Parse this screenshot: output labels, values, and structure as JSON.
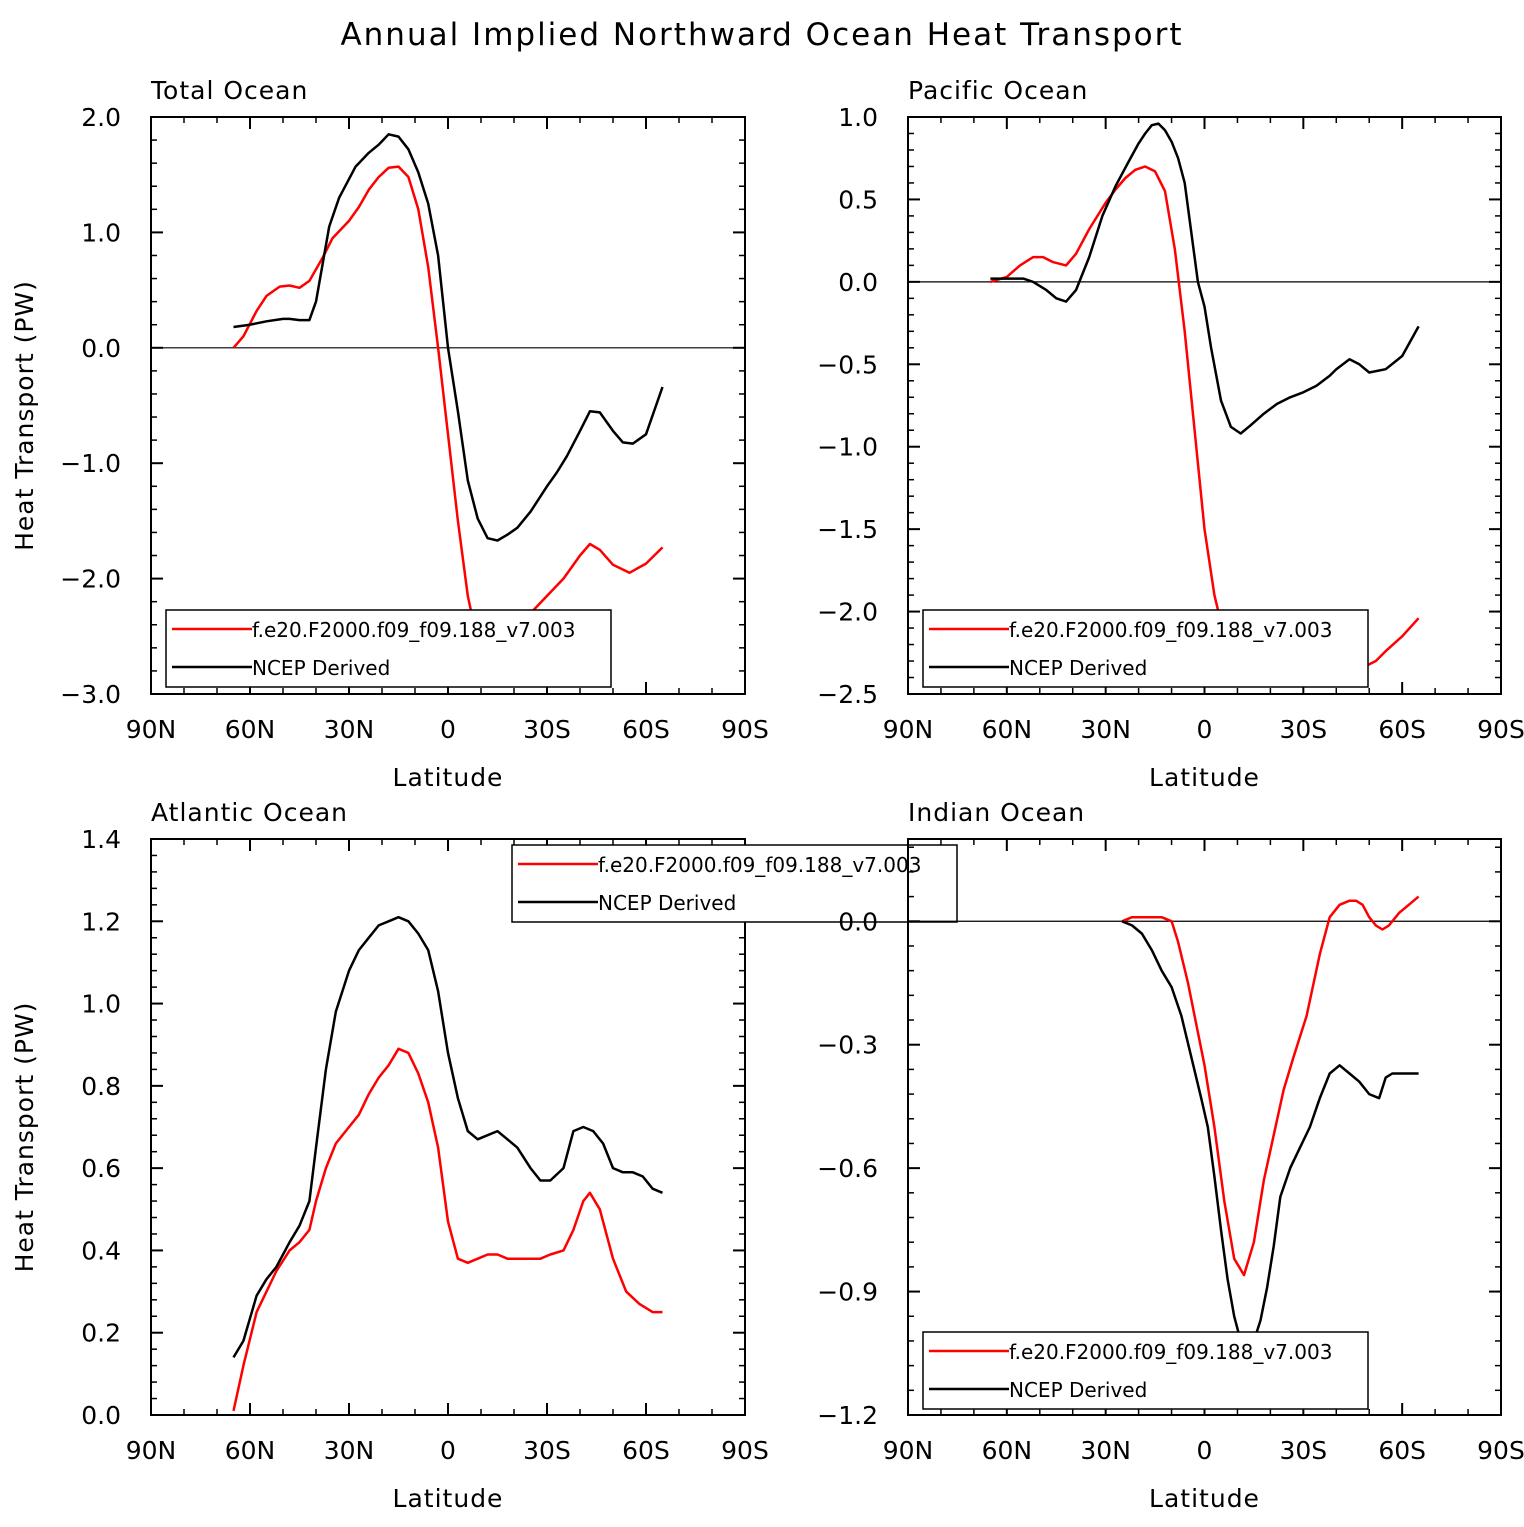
{
  "title": "Annual Implied Northward Ocean Heat Transport",
  "chart_data": [
    {
      "type": "line",
      "panel_title": "Total Ocean",
      "xlabel": "Latitude",
      "ylabel": "Heat Transport (PW)",
      "xlim": [
        90,
        -90
      ],
      "ylim": [
        -3.0,
        2.0
      ],
      "xticks": [
        90,
        60,
        30,
        0,
        -30,
        -60,
        -90
      ],
      "xtick_labels": [
        "90N",
        "60N",
        "30N",
        "0",
        "30S",
        "60S",
        "90S"
      ],
      "yticks": [
        -3.0,
        -2.0,
        -1.0,
        0.0,
        1.0,
        2.0
      ],
      "ytick_labels": [
        "−3.0",
        "−2.0",
        "−1.0",
        "0.0",
        "1.0",
        "2.0"
      ],
      "zero_line": true,
      "legend_position": "bottom-left",
      "show_ylabel": true,
      "series": [
        {
          "name": "f.e20.F2000.f09_f09.188_v7.003",
          "color": "#ff0000",
          "x": [
            65,
            62,
            58,
            55,
            51,
            48,
            45,
            42,
            38,
            35,
            30,
            27,
            24,
            21,
            18,
            15,
            12,
            9,
            6,
            3,
            0,
            -3,
            -6,
            -9,
            -12,
            -15,
            -18,
            -21,
            -25,
            -30,
            -35,
            -40,
            -43,
            -46,
            -50,
            -55,
            -60,
            -65
          ],
          "y": [
            0.0,
            0.1,
            0.32,
            0.45,
            0.53,
            0.54,
            0.52,
            0.58,
            0.78,
            0.95,
            1.1,
            1.22,
            1.37,
            1.48,
            1.56,
            1.57,
            1.48,
            1.2,
            0.7,
            0.0,
            -0.75,
            -1.5,
            -2.15,
            -2.55,
            -2.7,
            -2.72,
            -2.6,
            -2.45,
            -2.3,
            -2.15,
            -2.0,
            -1.8,
            -1.7,
            -1.75,
            -1.88,
            -1.95,
            -1.87,
            -1.73
          ]
        },
        {
          "name": "NCEP Derived",
          "color": "#000000",
          "x": [
            65,
            60,
            55,
            50,
            48,
            45,
            42,
            40,
            36,
            33,
            28,
            24,
            21,
            18,
            15,
            12,
            9,
            6,
            3,
            0,
            -3,
            -6,
            -9,
            -12,
            -15,
            -18,
            -21,
            -25,
            -30,
            -33,
            -36,
            -40,
            -43,
            -46,
            -50,
            -53,
            -56,
            -60,
            -65
          ],
          "y": [
            0.18,
            0.2,
            0.23,
            0.25,
            0.25,
            0.24,
            0.24,
            0.4,
            1.05,
            1.3,
            1.57,
            1.69,
            1.76,
            1.85,
            1.83,
            1.72,
            1.52,
            1.25,
            0.8,
            0.0,
            -0.55,
            -1.15,
            -1.48,
            -1.65,
            -1.67,
            -1.62,
            -1.56,
            -1.42,
            -1.2,
            -1.08,
            -0.94,
            -0.72,
            -0.55,
            -0.56,
            -0.72,
            -0.82,
            -0.83,
            -0.75,
            -0.34
          ]
        }
      ]
    },
    {
      "type": "line",
      "panel_title": "Pacific Ocean",
      "xlabel": "Latitude",
      "ylabel": "",
      "xlim": [
        90,
        -90
      ],
      "ylim": [
        -2.5,
        1.0
      ],
      "xticks": [
        90,
        60,
        30,
        0,
        -30,
        -60,
        -90
      ],
      "xtick_labels": [
        "90N",
        "60N",
        "30N",
        "0",
        "30S",
        "60S",
        "90S"
      ],
      "yticks": [
        -2.5,
        -2.0,
        -1.5,
        -1.0,
        -0.5,
        0.0,
        0.5,
        1.0
      ],
      "ytick_labels": [
        "−2.5",
        "−2.0",
        "−1.5",
        "−1.0",
        "−0.5",
        "0.0",
        "0.5",
        "1.0"
      ],
      "zero_line": true,
      "legend_position": "bottom-left",
      "show_ylabel": false,
      "series": [
        {
          "name": "f.e20.F2000.f09_f09.188_v7.003",
          "color": "#ff0000",
          "x": [
            65,
            60,
            56,
            52,
            49,
            46,
            42,
            39,
            35,
            30,
            27,
            24,
            21,
            18,
            15,
            12,
            9,
            6,
            3,
            0,
            -3,
            -6,
            -9,
            -12,
            -15,
            -18,
            -21,
            -24,
            -27,
            -30,
            -34,
            -38,
            -42,
            -46,
            -49,
            -52,
            -55,
            -60,
            -65
          ],
          "y": [
            0.0,
            0.03,
            0.1,
            0.15,
            0.15,
            0.12,
            0.1,
            0.17,
            0.32,
            0.48,
            0.56,
            0.63,
            0.68,
            0.7,
            0.67,
            0.55,
            0.2,
            -0.3,
            -0.9,
            -1.5,
            -1.9,
            -2.15,
            -2.25,
            -2.27,
            -2.24,
            -2.19,
            -2.15,
            -2.13,
            -2.12,
            -2.12,
            -2.14,
            -2.2,
            -2.26,
            -2.31,
            -2.33,
            -2.3,
            -2.24,
            -2.15,
            -2.04
          ]
        },
        {
          "name": "NCEP Derived",
          "color": "#000000",
          "x": [
            65,
            60,
            55,
            52,
            48,
            45,
            42,
            39,
            35,
            31,
            27,
            23,
            20,
            18,
            16,
            14,
            12,
            10,
            8,
            6,
            4,
            2,
            0,
            -2,
            -5,
            -8,
            -11,
            -14,
            -18,
            -22,
            -26,
            -30,
            -34,
            -38,
            -40,
            -42,
            -44,
            -47,
            -50,
            -55,
            -60,
            -65
          ],
          "y": [
            0.02,
            0.02,
            0.02,
            0.0,
            -0.05,
            -0.1,
            -0.12,
            -0.05,
            0.15,
            0.4,
            0.58,
            0.73,
            0.84,
            0.9,
            0.95,
            0.96,
            0.92,
            0.85,
            0.75,
            0.6,
            0.3,
            0.0,
            -0.15,
            -0.4,
            -0.72,
            -0.88,
            -0.92,
            -0.87,
            -0.8,
            -0.74,
            -0.7,
            -0.67,
            -0.63,
            -0.57,
            -0.53,
            -0.5,
            -0.47,
            -0.5,
            -0.55,
            -0.53,
            -0.45,
            -0.27
          ]
        }
      ]
    },
    {
      "type": "line",
      "panel_title": "Atlantic Ocean",
      "xlabel": "Latitude",
      "ylabel": "Heat Transport (PW)",
      "xlim": [
        90,
        -90
      ],
      "ylim": [
        0.0,
        1.4
      ],
      "xticks": [
        90,
        60,
        30,
        0,
        -30,
        -60,
        -90
      ],
      "xtick_labels": [
        "90N",
        "60N",
        "30N",
        "0",
        "30S",
        "60S",
        "90S"
      ],
      "yticks": [
        0.0,
        0.2,
        0.4,
        0.6,
        0.8,
        1.0,
        1.2,
        1.4
      ],
      "ytick_labels": [
        "0.0",
        "0.2",
        "0.4",
        "0.6",
        "0.8",
        "1.0",
        "1.2",
        "1.4"
      ],
      "zero_line": false,
      "legend_position": "top-center",
      "show_ylabel": true,
      "series": [
        {
          "name": "f.e20.F2000.f09_f09.188_v7.003",
          "color": "#ff0000",
          "x": [
            65,
            62,
            58,
            55,
            52,
            48,
            45,
            42,
            40,
            37,
            34,
            30,
            27,
            24,
            21,
            18,
            15,
            12,
            9,
            6,
            3,
            0,
            -3,
            -6,
            -9,
            -12,
            -15,
            -18,
            -21,
            -25,
            -28,
            -31,
            -35,
            -38,
            -41,
            -43,
            -46,
            -50,
            -54,
            -58,
            -62,
            -65
          ],
          "y": [
            0.01,
            0.12,
            0.25,
            0.3,
            0.35,
            0.4,
            0.42,
            0.45,
            0.52,
            0.6,
            0.66,
            0.7,
            0.73,
            0.78,
            0.82,
            0.85,
            0.89,
            0.88,
            0.83,
            0.76,
            0.65,
            0.47,
            0.38,
            0.37,
            0.38,
            0.39,
            0.39,
            0.38,
            0.38,
            0.38,
            0.38,
            0.39,
            0.4,
            0.45,
            0.52,
            0.54,
            0.5,
            0.38,
            0.3,
            0.27,
            0.25,
            0.25
          ]
        },
        {
          "name": "NCEP Derived",
          "color": "#000000",
          "x": [
            65,
            62,
            58,
            55,
            52,
            48,
            45,
            42,
            40,
            37,
            34,
            30,
            27,
            24,
            21,
            18,
            15,
            12,
            9,
            6,
            3,
            0,
            -3,
            -6,
            -9,
            -12,
            -15,
            -18,
            -21,
            -25,
            -28,
            -31,
            -35,
            -38,
            -41,
            -44,
            -47,
            -50,
            -53,
            -56,
            -59,
            -62,
            -65
          ],
          "y": [
            0.14,
            0.18,
            0.29,
            0.33,
            0.36,
            0.42,
            0.46,
            0.52,
            0.65,
            0.84,
            0.98,
            1.08,
            1.13,
            1.16,
            1.19,
            1.2,
            1.21,
            1.2,
            1.17,
            1.13,
            1.03,
            0.88,
            0.77,
            0.69,
            0.67,
            0.68,
            0.69,
            0.67,
            0.65,
            0.6,
            0.57,
            0.57,
            0.6,
            0.69,
            0.7,
            0.69,
            0.66,
            0.6,
            0.59,
            0.59,
            0.58,
            0.55,
            0.54
          ]
        }
      ]
    },
    {
      "type": "line",
      "panel_title": "Indian Ocean",
      "xlabel": "Latitude",
      "ylabel": "",
      "xlim": [
        90,
        -90
      ],
      "ylim": [
        -1.2,
        0.2
      ],
      "xticks": [
        90,
        60,
        30,
        0,
        -30,
        -60,
        -90
      ],
      "xtick_labels": [
        "90N",
        "60N",
        "30N",
        "0",
        "30S",
        "60S",
        "90S"
      ],
      "yticks": [
        -1.2,
        -0.9,
        -0.6,
        -0.3,
        0.0
      ],
      "ytick_labels": [
        "−1.2",
        "−0.9",
        "−0.6",
        "−0.3",
        "0.0"
      ],
      "zero_line": true,
      "legend_position": "bottom-left",
      "show_ylabel": false,
      "series": [
        {
          "name": "f.e20.F2000.f09_f09.188_v7.003",
          "color": "#ff0000",
          "x": [
            25,
            22,
            19,
            16,
            13,
            10,
            8,
            5,
            2,
            0,
            -3,
            -6,
            -9,
            -12,
            -15,
            -18,
            -21,
            -24,
            -27,
            -31,
            -35,
            -38,
            -41,
            -44,
            -46,
            -48,
            -50,
            -52,
            -54,
            -56,
            -59,
            -62,
            -65
          ],
          "y": [
            0.0,
            0.01,
            0.01,
            0.01,
            0.01,
            0.0,
            -0.05,
            -0.15,
            -0.27,
            -0.35,
            -0.5,
            -0.68,
            -0.82,
            -0.86,
            -0.78,
            -0.63,
            -0.52,
            -0.41,
            -0.33,
            -0.23,
            -0.08,
            0.01,
            0.04,
            0.05,
            0.05,
            0.04,
            0.01,
            -0.01,
            -0.02,
            -0.01,
            0.02,
            0.04,
            0.06
          ]
        },
        {
          "name": "NCEP Derived",
          "color": "#000000",
          "x": [
            25,
            22,
            19,
            16,
            13,
            10,
            7,
            4,
            1,
            -1,
            -3,
            -5,
            -7,
            -9,
            -11,
            -13,
            -15,
            -17,
            -19,
            -21,
            -23,
            -26,
            -29,
            -32,
            -35,
            -38,
            -41,
            -44,
            -47,
            -50,
            -53,
            -55,
            -57,
            -60,
            -65
          ],
          "y": [
            0.0,
            -0.01,
            -0.03,
            -0.07,
            -0.12,
            -0.16,
            -0.23,
            -0.33,
            -0.43,
            -0.5,
            -0.62,
            -0.75,
            -0.87,
            -0.96,
            -1.02,
            -1.05,
            -1.02,
            -0.97,
            -0.89,
            -0.79,
            -0.67,
            -0.6,
            -0.55,
            -0.5,
            -0.43,
            -0.37,
            -0.35,
            -0.37,
            -0.39,
            -0.42,
            -0.43,
            -0.38,
            -0.37,
            -0.37,
            -0.37
          ]
        }
      ]
    }
  ]
}
